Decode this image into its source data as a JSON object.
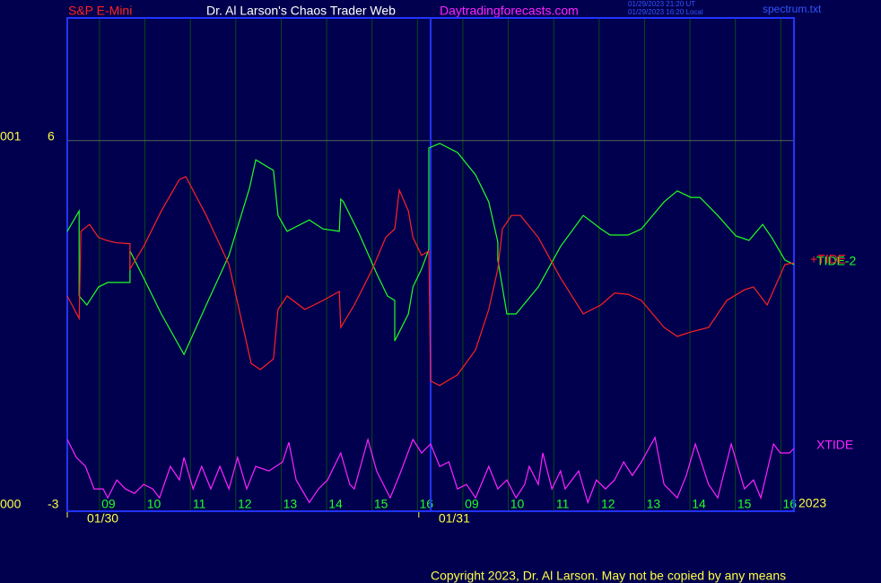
{
  "chart_data": {
    "type": "line",
    "header_left": "S&P E-Mini",
    "title": "Dr. Al Larson's Chaos Trader Web",
    "site": "Daytradingforecasts.com",
    "timestamps": [
      "01/29/2023 21:20 UT",
      "01/29/2023 16:20 Local"
    ],
    "file_label": "spectrum.txt",
    "copyright": "Copyright 2023, Dr. Al Larson. May not be copied by any means",
    "year_label": "2023",
    "xlim": [
      0,
      16
    ],
    "ylim": [
      -3,
      9
    ],
    "yticks": [
      -3,
      6
    ],
    "left_labels": [
      {
        "value": 6,
        "label": "001"
      },
      {
        "value": -3,
        "label": "000"
      }
    ],
    "xticks": [
      {
        "value": 0.71,
        "label": "09"
      },
      {
        "value": 1.71,
        "label": "10"
      },
      {
        "value": 2.71,
        "label": "11"
      },
      {
        "value": 3.71,
        "label": "12"
      },
      {
        "value": 4.71,
        "label": "13"
      },
      {
        "value": 5.71,
        "label": "14"
      },
      {
        "value": 6.71,
        "label": "15"
      },
      {
        "value": 7.71,
        "label": "16"
      },
      {
        "value": 8.71,
        "label": "09"
      },
      {
        "value": 9.71,
        "label": "10"
      },
      {
        "value": 10.71,
        "label": "11"
      },
      {
        "value": 11.71,
        "label": "12"
      },
      {
        "value": 12.71,
        "label": "13"
      },
      {
        "value": 13.71,
        "label": "14"
      },
      {
        "value": 14.71,
        "label": "15"
      },
      {
        "value": 15.71,
        "label": "16"
      }
    ],
    "date_ticks": [
      {
        "value": 0,
        "label": "01/30"
      },
      {
        "value": 7.74,
        "label": "01/31"
      }
    ],
    "day_divider": 8.0,
    "grid": true,
    "series": [
      {
        "name": "TIDE-2",
        "color": "#22ff22",
        "x": [
          0,
          0.26,
          0.26,
          0.43,
          0.69,
          0.89,
          1.38,
          1.38,
          1.68,
          2.07,
          2.57,
          3.06,
          3.56,
          4.01,
          4.15,
          4.54,
          4.64,
          4.84,
          5.33,
          5.63,
          5.99,
          6.02,
          6.08,
          6.42,
          6.81,
          7.05,
          7.21,
          7.21,
          7.51,
          7.61,
          7.8,
          7.96,
          7.96,
          8.2,
          8.59,
          8.99,
          9.28,
          9.48,
          9.48,
          9.68,
          9.88,
          10.37,
          10.86,
          11.36,
          11.75,
          11.95,
          12.35,
          12.64,
          13.14,
          13.43,
          13.73,
          13.93,
          14.32,
          14.72,
          15.01,
          15.31,
          15.51,
          15.8,
          16.0
        ],
        "values": [
          3.78,
          4.28,
          2.2,
          1.98,
          2.42,
          2.53,
          2.53,
          3.3,
          2.64,
          1.76,
          0.77,
          1.98,
          3.19,
          4.83,
          5.53,
          5.27,
          4.17,
          3.78,
          4.06,
          3.84,
          3.78,
          4.57,
          4.5,
          3.74,
          2.75,
          2.2,
          2.09,
          1.1,
          1.76,
          2.42,
          2.86,
          3.34,
          5.82,
          5.93,
          5.71,
          5.16,
          4.5,
          3.52,
          3.08,
          1.76,
          1.76,
          2.42,
          3.41,
          4.17,
          3.84,
          3.69,
          3.69,
          3.84,
          4.5,
          4.77,
          4.61,
          4.61,
          4.17,
          3.67,
          3.56,
          3.95,
          3.63,
          3.08,
          2.97
        ]
      },
      {
        "name": "+TIDE",
        "color": "#ff2222",
        "x": [
          0,
          0.26,
          0.3,
          0.49,
          0.69,
          0.89,
          1.09,
          1.38,
          1.38,
          1.68,
          2.07,
          2.47,
          2.61,
          3.06,
          3.56,
          3.85,
          4.05,
          4.25,
          4.54,
          4.64,
          4.84,
          5.23,
          5.63,
          5.99,
          6.02,
          6.32,
          6.72,
          7.01,
          7.21,
          7.31,
          7.51,
          7.61,
          7.8,
          7.96,
          8.0,
          8.2,
          8.59,
          8.99,
          9.28,
          9.48,
          9.58,
          9.78,
          9.98,
          10.37,
          10.86,
          11.36,
          11.75,
          12.05,
          12.35,
          12.64,
          13.14,
          13.43,
          13.73,
          14.12,
          14.52,
          14.91,
          15.11,
          15.41,
          15.8,
          16.0
        ],
        "values": [
          2.2,
          1.65,
          3.78,
          3.95,
          3.63,
          3.55,
          3.5,
          3.48,
          2.86,
          3.41,
          4.28,
          5.05,
          5.12,
          4.17,
          2.97,
          1.54,
          0.55,
          0.4,
          0.66,
          1.87,
          2.2,
          1.87,
          2.09,
          2.31,
          1.43,
          1.98,
          2.86,
          3.63,
          3.84,
          4.79,
          4.28,
          3.63,
          3.19,
          3.3,
          0.12,
          0.01,
          0.27,
          0.88,
          1.87,
          2.86,
          3.84,
          4.17,
          4.17,
          3.63,
          2.64,
          1.76,
          1.98,
          2.27,
          2.24,
          2.09,
          1.43,
          1.21,
          1.32,
          1.43,
          2.09,
          2.35,
          2.42,
          1.98,
          2.97,
          3.01
        ]
      },
      {
        "name": "XTIDE",
        "color": "#ff22ff",
        "x": [
          0,
          0.2,
          0.4,
          0.59,
          0.79,
          0.89,
          1.09,
          1.28,
          1.48,
          1.68,
          1.88,
          2.03,
          2.27,
          2.47,
          2.57,
          2.77,
          2.96,
          3.16,
          3.36,
          3.56,
          3.75,
          3.95,
          4.15,
          4.44,
          4.74,
          4.88,
          5.04,
          5.33,
          5.53,
          5.73,
          6.02,
          6.22,
          6.32,
          6.62,
          6.81,
          7.11,
          7.31,
          7.61,
          7.8,
          8.0,
          8.2,
          8.4,
          8.59,
          8.79,
          8.99,
          9.28,
          9.48,
          9.68,
          9.88,
          10.07,
          10.17,
          10.37,
          10.47,
          10.67,
          10.86,
          10.96,
          11.26,
          11.46,
          11.65,
          11.85,
          12.05,
          12.25,
          12.44,
          12.64,
          12.94,
          13.14,
          13.43,
          13.63,
          13.83,
          14.12,
          14.32,
          14.62,
          14.91,
          15.11,
          15.27,
          15.41,
          15.55,
          15.7,
          15.9,
          16.0
        ],
        "values": [
          -1.31,
          -1.75,
          -1.97,
          -2.52,
          -2.52,
          -2.74,
          -2.3,
          -2.52,
          -2.63,
          -2.41,
          -2.52,
          -2.74,
          -1.97,
          -2.3,
          -1.75,
          -2.52,
          -1.97,
          -2.52,
          -1.97,
          -2.52,
          -1.75,
          -2.52,
          -1.97,
          -2.08,
          -1.86,
          -1.38,
          -2.3,
          -2.85,
          -2.52,
          -2.3,
          -1.64,
          -2.41,
          -2.52,
          -1.31,
          -2.08,
          -2.74,
          -2.19,
          -1.31,
          -1.64,
          -1.42,
          -1.97,
          -1.86,
          -2.52,
          -2.41,
          -2.74,
          -1.97,
          -2.52,
          -2.3,
          -2.74,
          -2.41,
          -1.97,
          -2.41,
          -1.64,
          -2.52,
          -2.08,
          -2.52,
          -2.08,
          -2.85,
          -2.3,
          -2.52,
          -2.3,
          -1.86,
          -2.19,
          -1.86,
          -1.26,
          -2.41,
          -2.74,
          -2.19,
          -1.42,
          -2.41,
          -2.74,
          -1.42,
          -2.52,
          -2.3,
          -2.74,
          -2.08,
          -1.42,
          -1.64,
          -1.64,
          -1.53
        ]
      }
    ]
  }
}
